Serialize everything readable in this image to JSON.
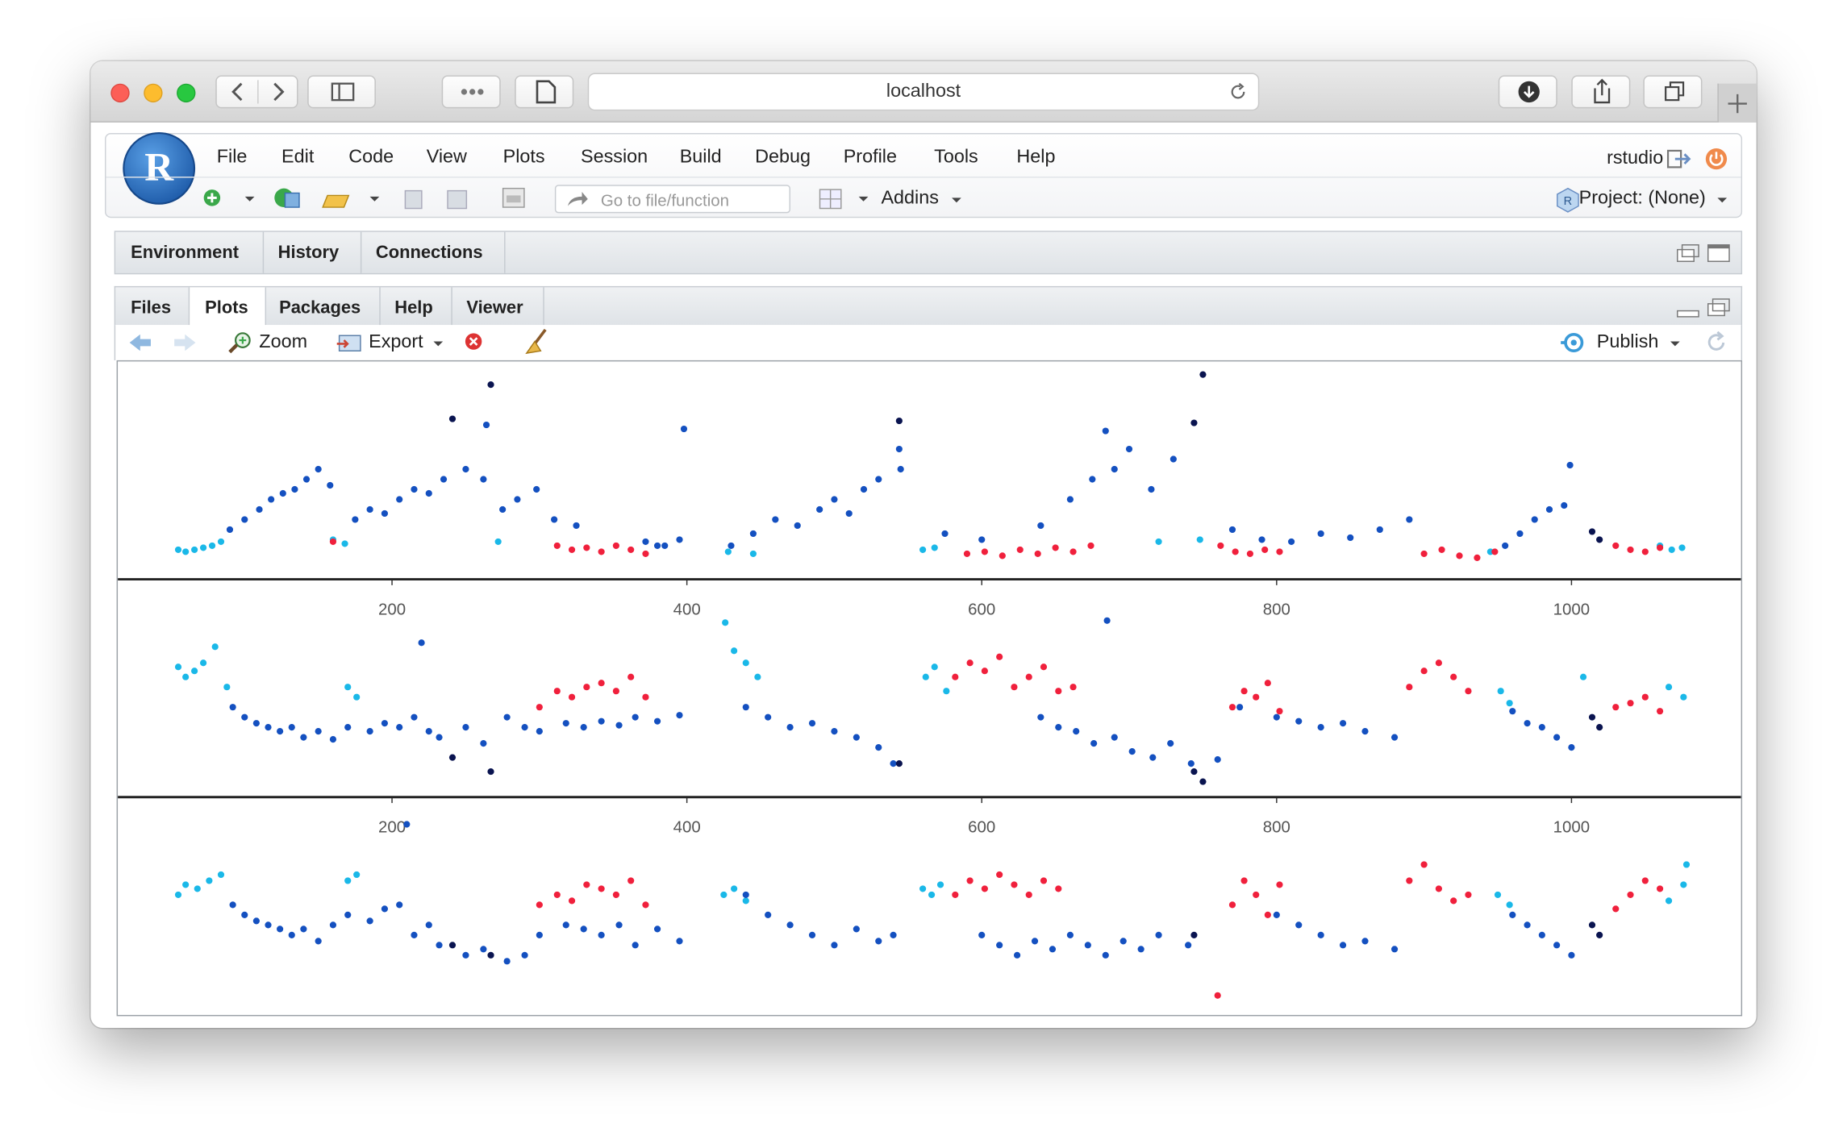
{
  "browser": {
    "url": "localhost"
  },
  "rstudio": {
    "menu": [
      "File",
      "Edit",
      "Code",
      "View",
      "Plots",
      "Session",
      "Build",
      "Debug",
      "Profile",
      "Tools",
      "Help"
    ],
    "user": "rstudio",
    "goto_placeholder": "Go to file/function",
    "addins": "Addins",
    "project": "Project: (None)",
    "top_tabs": [
      "Environment",
      "History",
      "Connections"
    ],
    "bottom_tabs": [
      "Files",
      "Plots",
      "Packages",
      "Help",
      "Viewer"
    ],
    "plot_toolbar": {
      "zoom": "Zoom",
      "export": "Export",
      "publish": "Publish"
    }
  },
  "chart_data": [
    {
      "type": "scatter",
      "xlim": [
        14,
        1115
      ],
      "ylim": [
        0,
        100
      ],
      "xticks": [
        200,
        400,
        600,
        800,
        1000
      ],
      "series": [
        {
          "color": "#1ab8e8",
          "x": [
            55,
            60,
            66,
            72,
            78,
            84,
            160,
            168,
            272,
            428,
            445,
            560,
            568,
            720,
            748,
            945,
            1060,
            1068,
            1075
          ],
          "values": [
            10,
            9,
            10,
            11,
            12,
            14,
            15,
            13,
            14,
            9,
            8,
            10,
            11,
            14,
            15,
            9,
            12,
            10,
            11
          ]
        },
        {
          "color": "#1450c0",
          "x": [
            90,
            100,
            110,
            118,
            126,
            134,
            142,
            150,
            158,
            175,
            185,
            195,
            205,
            215,
            225,
            235,
            250,
            262,
            275,
            285,
            298,
            310,
            325,
            372,
            385,
            380,
            395,
            430,
            445,
            460,
            475,
            490,
            500,
            510,
            520,
            530,
            545,
            575,
            600,
            640,
            660,
            675,
            690,
            700,
            715,
            730,
            770,
            790,
            810,
            830,
            850,
            870,
            890,
            955,
            965,
            975,
            985,
            995,
            264,
            398,
            544,
            684,
            999
          ],
          "values": [
            20,
            25,
            30,
            35,
            38,
            40,
            45,
            50,
            42,
            25,
            30,
            28,
            35,
            40,
            38,
            45,
            50,
            45,
            30,
            35,
            40,
            25,
            22,
            14,
            12,
            12,
            15,
            12,
            18,
            25,
            22,
            30,
            35,
            28,
            40,
            45,
            50,
            18,
            15,
            22,
            35,
            45,
            50,
            60,
            40,
            55,
            20,
            15,
            14,
            18,
            16,
            20,
            25,
            12,
            18,
            25,
            30,
            32,
            72,
            70,
            60,
            69,
            52
          ]
        },
        {
          "color": "#f0203c",
          "x": [
            160,
            312,
            322,
            332,
            342,
            352,
            362,
            372,
            590,
            602,
            614,
            626,
            638,
            650,
            662,
            674,
            762,
            772,
            782,
            792,
            802,
            900,
            912,
            924,
            936,
            948,
            1030,
            1040,
            1050,
            1060
          ],
          "values": [
            14,
            12,
            10,
            11,
            9,
            12,
            10,
            8,
            8,
            9,
            7,
            10,
            8,
            11,
            9,
            12,
            12,
            9,
            8,
            10,
            9,
            8,
            10,
            7,
            6,
            9,
            12,
            10,
            9,
            11
          ]
        },
        {
          "color": "#0a1450",
          "x": [
            241,
            267,
            544,
            744,
            750,
            1014,
            1019
          ],
          "values": [
            75,
            92,
            74,
            73,
            97,
            19,
            15
          ]
        }
      ]
    },
    {
      "type": "scatter",
      "xlim": [
        14,
        1115
      ],
      "ylim": [
        0,
        100
      ],
      "xticks": [
        200,
        400,
        600,
        800,
        1000
      ],
      "series": [
        {
          "color": "#1ab8e8",
          "x": [
            55,
            60,
            66,
            72,
            80,
            88,
            170,
            176,
            426,
            432,
            440,
            448,
            562,
            568,
            576,
            952,
            958,
            1008,
            1066,
            1076
          ],
          "values": [
            60,
            55,
            58,
            62,
            70,
            50,
            50,
            45,
            82,
            68,
            62,
            55,
            55,
            60,
            48,
            48,
            42,
            55,
            50,
            45
          ]
        },
        {
          "color": "#1450c0",
          "x": [
            92,
            100,
            108,
            116,
            124,
            132,
            140,
            150,
            160,
            170,
            185,
            195,
            205,
            215,
            225,
            232,
            250,
            262,
            278,
            290,
            300,
            318,
            330,
            342,
            354,
            365,
            380,
            395,
            440,
            455,
            470,
            485,
            500,
            515,
            530,
            540,
            640,
            652,
            664,
            676,
            690,
            702,
            716,
            728,
            742,
            760,
            775,
            800,
            815,
            830,
            845,
            860,
            880,
            960,
            970,
            980,
            990,
            1000,
            220,
            685
          ],
          "values": [
            40,
            35,
            32,
            30,
            28,
            30,
            25,
            28,
            24,
            30,
            28,
            32,
            30,
            35,
            28,
            25,
            30,
            22,
            35,
            30,
            28,
            32,
            30,
            33,
            31,
            35,
            33,
            36,
            40,
            35,
            30,
            32,
            28,
            25,
            20,
            12,
            35,
            30,
            28,
            22,
            25,
            18,
            15,
            22,
            12,
            14,
            40,
            35,
            33,
            30,
            32,
            28,
            25,
            38,
            32,
            30,
            25,
            20,
            72,
            83
          ]
        },
        {
          "color": "#f0203c",
          "x": [
            300,
            312,
            322,
            332,
            342,
            352,
            362,
            372,
            582,
            592,
            602,
            612,
            622,
            632,
            642,
            652,
            662,
            770,
            778,
            786,
            794,
            802,
            890,
            900,
            910,
            920,
            930,
            1030,
            1040,
            1050,
            1060
          ],
          "values": [
            40,
            48,
            45,
            50,
            52,
            48,
            55,
            45,
            55,
            62,
            58,
            65,
            50,
            55,
            60,
            48,
            50,
            40,
            48,
            45,
            52,
            38,
            50,
            58,
            62,
            55,
            48,
            40,
            42,
            45,
            38
          ]
        },
        {
          "color": "#0a1450",
          "x": [
            241,
            267,
            544,
            744,
            750,
            1014,
            1019
          ],
          "values": [
            15,
            8,
            12,
            8,
            3,
            35,
            30
          ]
        }
      ]
    },
    {
      "type": "scatter",
      "xlim": [
        14,
        1115
      ],
      "ylim": [
        0,
        100
      ],
      "series": [
        {
          "color": "#1ab8e8",
          "x": [
            55,
            60,
            68,
            76,
            84,
            170,
            176,
            425,
            432,
            440,
            560,
            566,
            572,
            950,
            958,
            1066,
            1076,
            1078
          ],
          "values": [
            55,
            60,
            58,
            62,
            65,
            62,
            65,
            55,
            58,
            52,
            58,
            55,
            60,
            55,
            50,
            52,
            60,
            70
          ]
        },
        {
          "color": "#1450c0",
          "x": [
            92,
            100,
            108,
            116,
            124,
            132,
            140,
            150,
            160,
            170,
            185,
            195,
            205,
            215,
            225,
            232,
            250,
            262,
            278,
            290,
            300,
            318,
            330,
            342,
            354,
            365,
            380,
            395,
            440,
            455,
            470,
            485,
            500,
            515,
            530,
            540,
            600,
            612,
            624,
            636,
            648,
            660,
            672,
            684,
            696,
            708,
            720,
            740,
            800,
            815,
            830,
            845,
            860,
            880,
            960,
            970,
            980,
            990,
            1000,
            210
          ],
          "values": [
            50,
            45,
            42,
            40,
            38,
            35,
            38,
            32,
            40,
            45,
            42,
            48,
            50,
            35,
            40,
            30,
            25,
            28,
            22,
            25,
            35,
            40,
            38,
            35,
            40,
            30,
            38,
            32,
            55,
            45,
            40,
            35,
            30,
            38,
            32,
            35,
            35,
            30,
            25,
            32,
            28,
            35,
            30,
            25,
            32,
            28,
            35,
            30,
            45,
            40,
            35,
            30,
            32,
            28,
            45,
            40,
            35,
            30,
            25,
            90
          ]
        },
        {
          "color": "#f0203c",
          "x": [
            300,
            312,
            322,
            332,
            342,
            352,
            362,
            372,
            582,
            592,
            602,
            612,
            622,
            632,
            642,
            652,
            770,
            778,
            786,
            794,
            802,
            760,
            890,
            900,
            910,
            920,
            930,
            1030,
            1040,
            1050,
            1060
          ],
          "values": [
            50,
            55,
            52,
            60,
            58,
            55,
            62,
            50,
            55,
            62,
            58,
            65,
            60,
            55,
            62,
            58,
            50,
            62,
            55,
            45,
            60,
            5,
            62,
            70,
            58,
            52,
            55,
            48,
            55,
            62,
            58
          ]
        },
        {
          "color": "#0a1450",
          "x": [
            241,
            267,
            744,
            1014,
            1019
          ],
          "values": [
            30,
            25,
            35,
            40,
            35
          ]
        }
      ]
    }
  ]
}
